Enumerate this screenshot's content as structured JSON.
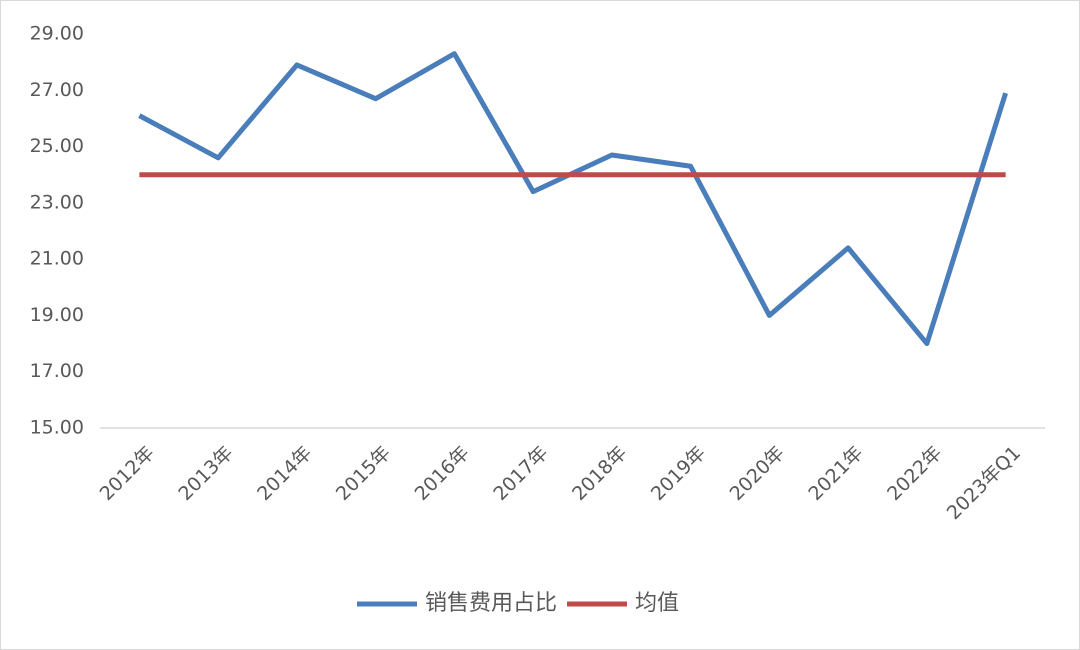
{
  "chart_data": {
    "type": "line",
    "categories": [
      "2012年",
      "2013年",
      "2014年",
      "2015年",
      "2016年",
      "2017年",
      "2018年",
      "2019年",
      "2020年",
      "2021年",
      "2022年",
      "2023年Q1"
    ],
    "series": [
      {
        "name": "销售费用占比",
        "color": "#4a7ebb",
        "values": [
          26.1,
          24.6,
          27.9,
          26.7,
          28.3,
          23.4,
          24.7,
          24.3,
          19.0,
          21.4,
          18.0,
          26.9
        ]
      },
      {
        "name": "均值",
        "color": "#be4b48",
        "values": [
          24.0,
          24.0,
          24.0,
          24.0,
          24.0,
          24.0,
          24.0,
          24.0,
          24.0,
          24.0,
          24.0,
          24.0
        ]
      }
    ],
    "ylim": [
      15,
      29
    ],
    "yticks": [
      {
        "value": 15,
        "label": "15.00"
      },
      {
        "value": 17,
        "label": "17.00"
      },
      {
        "value": 19,
        "label": "19.00"
      },
      {
        "value": 21,
        "label": "21.00"
      },
      {
        "value": 23,
        "label": "23.00"
      },
      {
        "value": 25,
        "label": "25.00"
      },
      {
        "value": 27,
        "label": "27.00"
      },
      {
        "value": 29,
        "label": "29.00"
      }
    ],
    "grid": false,
    "legend": "bottom"
  }
}
